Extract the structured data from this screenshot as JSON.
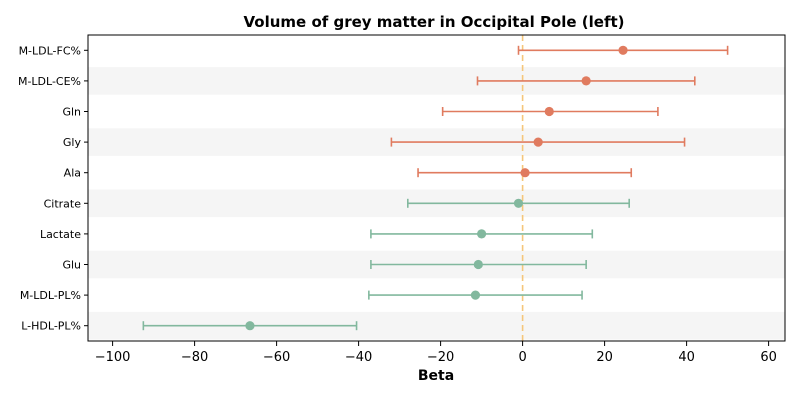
{
  "chart_data": {
    "type": "forest",
    "title": "Volume of grey matter in Occipital Pole (left)",
    "xlabel": "Beta",
    "ylabel": "",
    "xlim": [
      -106,
      64
    ],
    "xticks": [
      -100,
      -80,
      -60,
      -40,
      -20,
      0,
      20,
      40,
      60
    ],
    "xtick_labels": [
      "−100",
      "−80",
      "−60",
      "−40",
      "−20",
      "0",
      "20",
      "40",
      "60"
    ],
    "reference_line": 0,
    "grid": false,
    "colors": {
      "positive": "#e07b5f",
      "negative": "#82b89e",
      "reference": "#f5c67a",
      "band": "#f5f5f5"
    },
    "rows": [
      {
        "label": "M-LDL-FC%",
        "beta": 24.5,
        "ci_low": -1,
        "ci_high": 50,
        "group": "positive"
      },
      {
        "label": "M-LDL-CE%",
        "beta": 15.5,
        "ci_low": -11,
        "ci_high": 42,
        "group": "positive"
      },
      {
        "label": "Gln",
        "beta": 6.5,
        "ci_low": -19.5,
        "ci_high": 33,
        "group": "positive"
      },
      {
        "label": "Gly",
        "beta": 3.8,
        "ci_low": -32,
        "ci_high": 39.5,
        "group": "positive"
      },
      {
        "label": "Ala",
        "beta": 0.6,
        "ci_low": -25.5,
        "ci_high": 26.5,
        "group": "positive"
      },
      {
        "label": "Citrate",
        "beta": -1.0,
        "ci_low": -28,
        "ci_high": 26,
        "group": "negative"
      },
      {
        "label": "Lactate",
        "beta": -10.0,
        "ci_low": -37,
        "ci_high": 17,
        "group": "negative"
      },
      {
        "label": "Glu",
        "beta": -10.8,
        "ci_low": -37,
        "ci_high": 15.5,
        "group": "negative"
      },
      {
        "label": "M-LDL-PL%",
        "beta": -11.5,
        "ci_low": -37.5,
        "ci_high": 14.5,
        "group": "negative"
      },
      {
        "label": "L-HDL-PL%",
        "beta": -66.5,
        "ci_low": -92.5,
        "ci_high": -40.5,
        "group": "negative"
      }
    ]
  }
}
